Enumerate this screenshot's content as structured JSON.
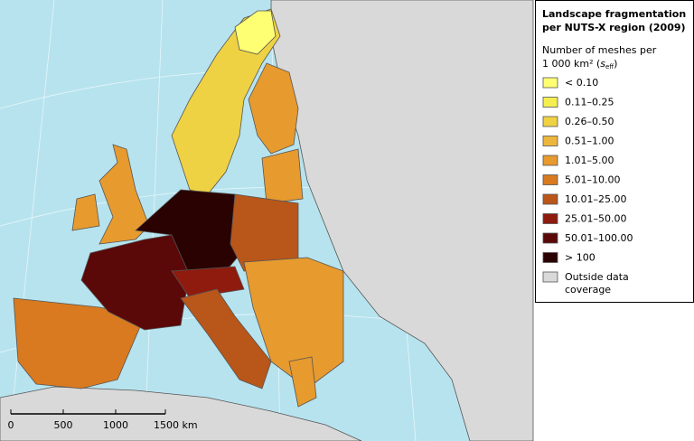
{
  "legend": {
    "title": [
      "Landscape fragmentation",
      "per NUTS-X region (2009)"
    ],
    "subtitle_line1": "Number of meshes per",
    "subtitle_line2": "1 000 km² (",
    "subtitle_symbol": "s",
    "subtitle_subscript": "eff",
    "subtitle_close": ")",
    "items": [
      {
        "label": [
          "< 0.10"
        ],
        "color": "#ffff73"
      },
      {
        "label": [
          "0.11–0.25"
        ],
        "color": "#f5ee4f"
      },
      {
        "label": [
          "0.26–0.50"
        ],
        "color": "#efd244"
      },
      {
        "label": [
          "0.51–1.00"
        ],
        "color": "#ecb63c"
      },
      {
        "label": [
          "1.01–5.00"
        ],
        "color": "#e79a2e"
      },
      {
        "label": [
          "5.01–10.00"
        ],
        "color": "#d97a20"
      },
      {
        "label": [
          "10.01–25.00"
        ],
        "color": "#b9561a"
      },
      {
        "label": [
          "25.01–50.00"
        ],
        "color": "#8e1b0e"
      },
      {
        "label": [
          "50.01–100.00"
        ],
        "color": "#5a0808"
      },
      {
        "label": [
          "> 100"
        ],
        "color": "#2a0202"
      },
      {
        "label": [
          "Outside data",
          "coverage"
        ],
        "color": "#d9d9d9"
      }
    ]
  },
  "scale_bar": {
    "labels": [
      "0",
      "500",
      "1000",
      "1500 km"
    ]
  }
}
